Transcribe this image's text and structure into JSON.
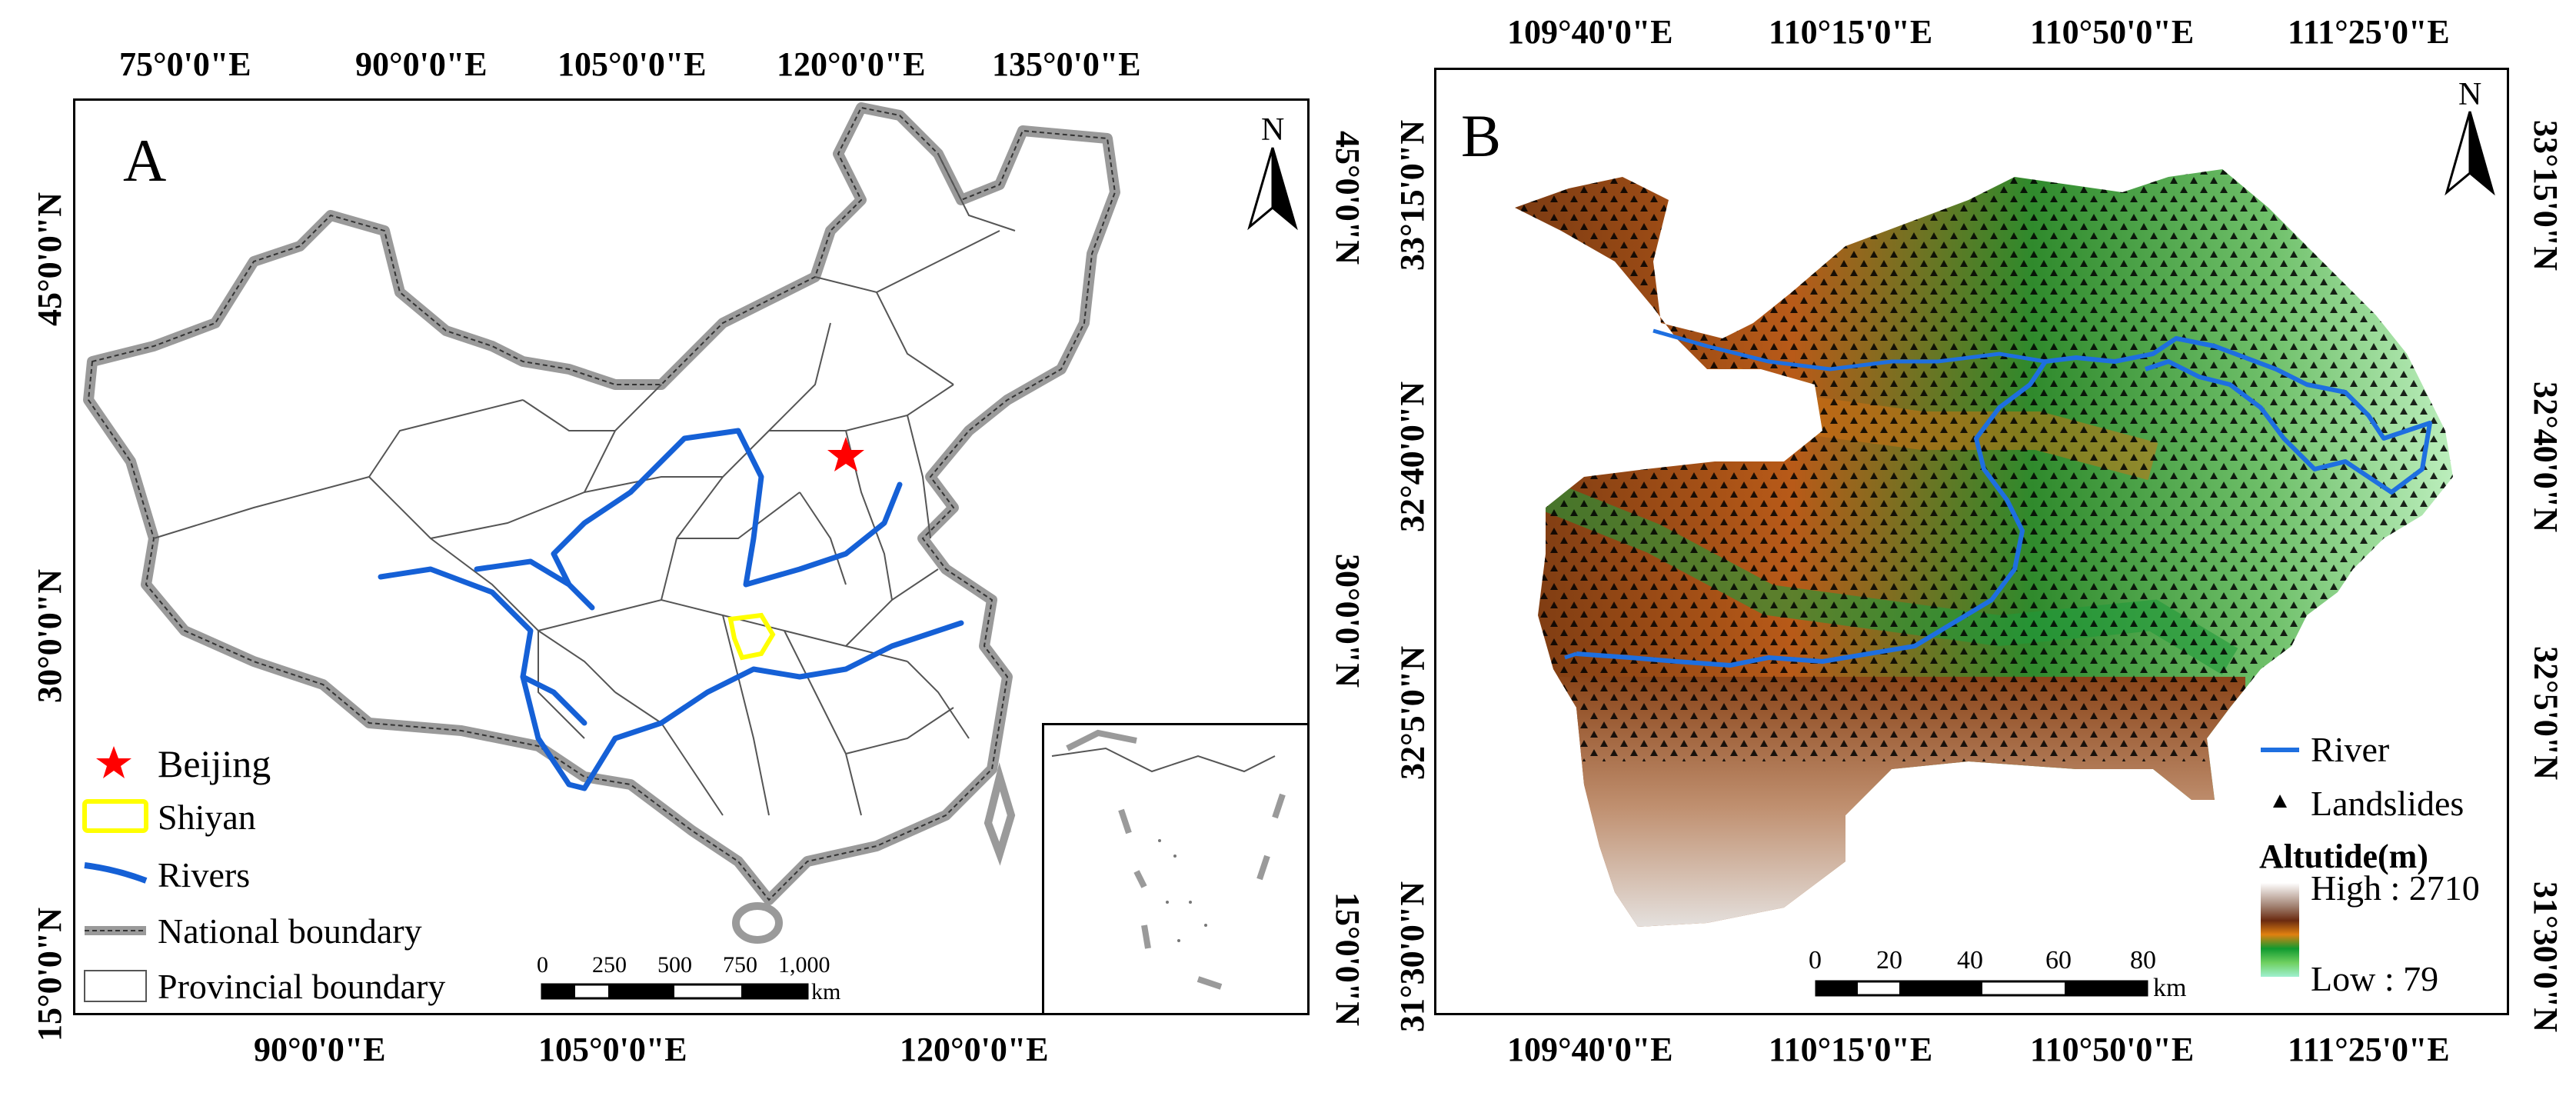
{
  "panel_a": {
    "letter": "A",
    "top_ticks": [
      "75°0'0\"E",
      "90°0'0\"E",
      "105°0'0\"E",
      "120°0'0\"E",
      "135°0'0\"E"
    ],
    "bottom_ticks": [
      "90°0'0\"E",
      "105°0'0\"E",
      "120°0'0\"E"
    ],
    "left_ticks": [
      "45°0'0\"N",
      "30°0'0\"N",
      "15°0'0\"N"
    ],
    "right_ticks": [
      "45°0'0\"N",
      "30°0'0\"N",
      "15°0'0\"N"
    ],
    "north": "N",
    "legend": {
      "beijing": "Beijing",
      "shiyan": "Shiyan",
      "rivers": "Rivers",
      "national": "National boundary",
      "provincial": "Provincial boundary"
    },
    "scale": {
      "labels": [
        "0",
        "250",
        "500",
        "750",
        "1,000"
      ],
      "unit": "km"
    },
    "colors": {
      "river": "#1560d6",
      "shiyan": "#ffff00",
      "beijing": "#ff0000",
      "boundary": "#9a9a9a"
    }
  },
  "panel_b": {
    "letter": "B",
    "top_ticks": [
      "109°40'0\"E",
      "110°15'0\"E",
      "110°50'0\"E",
      "111°25'0\"E"
    ],
    "bottom_ticks": [
      "109°40'0\"E",
      "110°15'0\"E",
      "110°50'0\"E",
      "111°25'0\"E"
    ],
    "left_ticks": [
      "33°15'0\"N",
      "32°40'0\"N",
      "32°5'0\"N",
      "31°30'0\"N"
    ],
    "right_ticks": [
      "33°15'0\"N",
      "32°40'0\"N",
      "32°5'0\"N",
      "31°30'0\"N"
    ],
    "north": "N",
    "legend": {
      "river": "River",
      "landslides": "Landslides",
      "altitude_title": "Altutide(m)",
      "high": "High : 2710",
      "low": "Low : 79"
    },
    "scale": {
      "labels": [
        "0",
        "20",
        "40",
        "60",
        "80"
      ],
      "unit": "km"
    },
    "colors": {
      "river": "#1e6fe0",
      "high": "#ffffff",
      "brown": "#7a3a12",
      "orange": "#e07a10",
      "green": "#109030",
      "low": "#9ff0d0"
    }
  }
}
